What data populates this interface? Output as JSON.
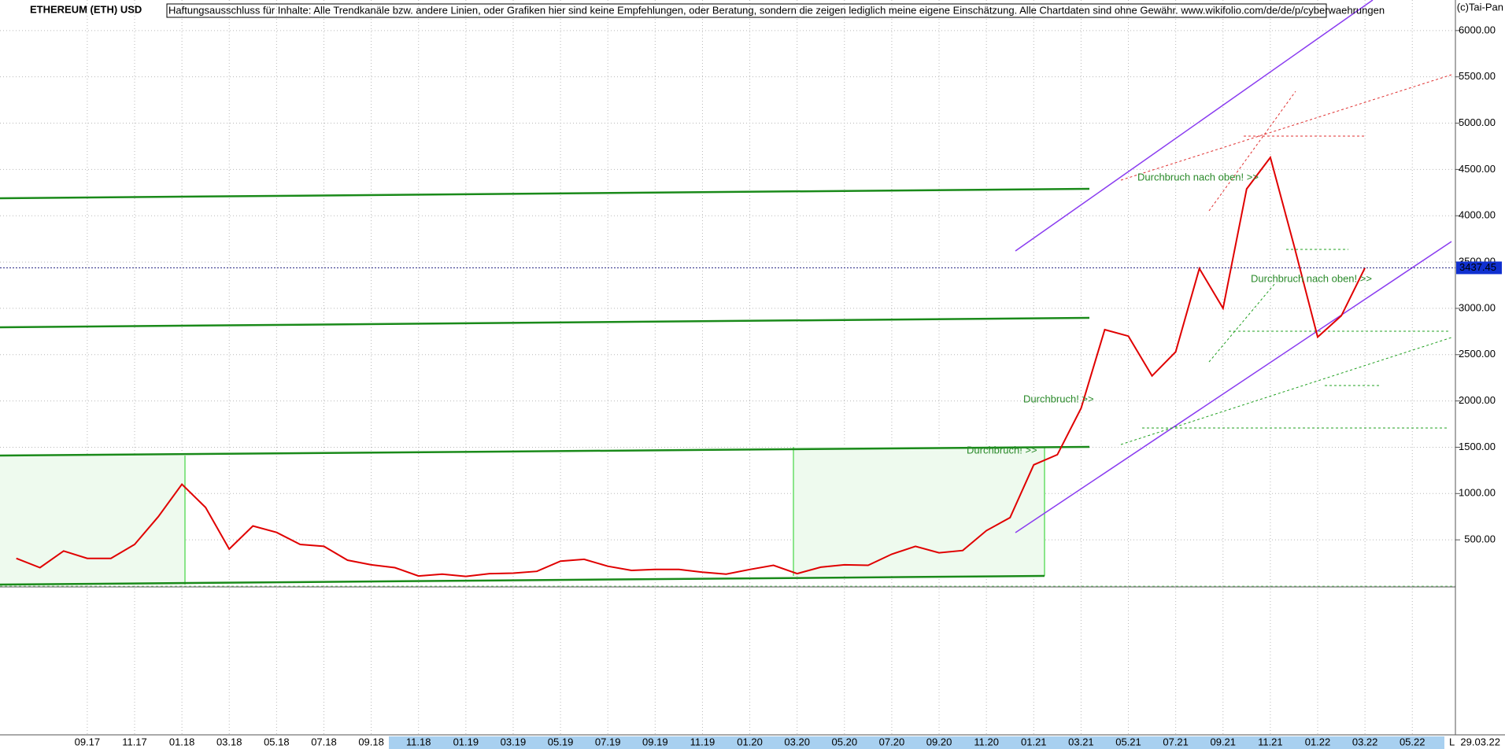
{
  "chart_data": {
    "type": "line",
    "title": "ETHEREUM (ETH) USD",
    "disclaimer": "Haftungsausschluss für Inhalte: Alle Trendkanäle bzw. andere Linien, oder Grafiken hier sind keine Empfehlungen, oder Beratung, sondern die zeigen lediglich meine eigene Einschätzung. Alle Chartdaten sind ohne Gewähr.  www.wikifolio.com/de/de/p/cyberwaehrungen",
    "copyright": "(c)Tai-Pan",
    "last_price": 3437.45,
    "last_date": "29.03.22",
    "axis_end_label": "L",
    "annotations": [
      "Durchbruch nach oben! >>",
      "Durchbruch nach oben! >>",
      "Durchbruch! >>",
      "Durchbruch! >>"
    ],
    "categories": [
      null,
      null,
      null,
      "09.17",
      null,
      "11.17",
      null,
      "01.18",
      null,
      "03.18",
      null,
      "05.18",
      null,
      "07.18",
      null,
      "09.18",
      null,
      "11.18",
      null,
      "01.19",
      null,
      "03.19",
      null,
      "05.19",
      null,
      "07.19",
      null,
      "09.19",
      null,
      "11.19",
      null,
      "01.20",
      null,
      "03.20",
      null,
      "05.20",
      null,
      "07.20",
      null,
      "09.20",
      null,
      "11.20",
      null,
      "01.21",
      null,
      "03.21",
      null,
      "05.21",
      null,
      "07.21",
      null,
      "09.21",
      null,
      "11.21",
      null,
      "01.22",
      null,
      "03.22",
      null,
      "05.22",
      null
    ],
    "series": [
      {
        "name": "ETH",
        "color": "#e00000",
        "values": [
          300,
          200,
          380,
          300,
          300,
          450,
          750,
          1100,
          850,
          400,
          650,
          580,
          450,
          430,
          280,
          230,
          200,
          110,
          130,
          105,
          135,
          140,
          160,
          270,
          290,
          215,
          170,
          180,
          180,
          150,
          130,
          180,
          225,
          135,
          205,
          230,
          225,
          345,
          430,
          360,
          385,
          600,
          740,
          1310,
          1420,
          1920,
          2770,
          2700,
          2270,
          2530,
          3430,
          3000,
          4290,
          4630,
          3680,
          2690,
          2920,
          3437.45,
          null,
          null,
          null
        ]
      }
    ],
    "ylim": [
      0,
      6330
    ],
    "yticks": [
      {
        "value": 500,
        "label": "500.00"
      },
      {
        "value": 1000,
        "label": "1000.00"
      },
      {
        "value": 1500,
        "label": "1500.00"
      },
      {
        "value": 2000,
        "label": "2000.00"
      },
      {
        "value": 2500,
        "label": "2500.00"
      },
      {
        "value": 3000,
        "label": "3000.00"
      },
      {
        "value": 3500,
        "label": "3500.00"
      },
      {
        "value": 4000,
        "label": "4000.00"
      },
      {
        "value": 4500,
        "label": "4500.00"
      },
      {
        "value": 5000,
        "label": "5000.00"
      },
      {
        "value": 5500,
        "label": "5500.00"
      },
      {
        "value": 6000,
        "label": "6000.00"
      }
    ],
    "grid": true
  }
}
